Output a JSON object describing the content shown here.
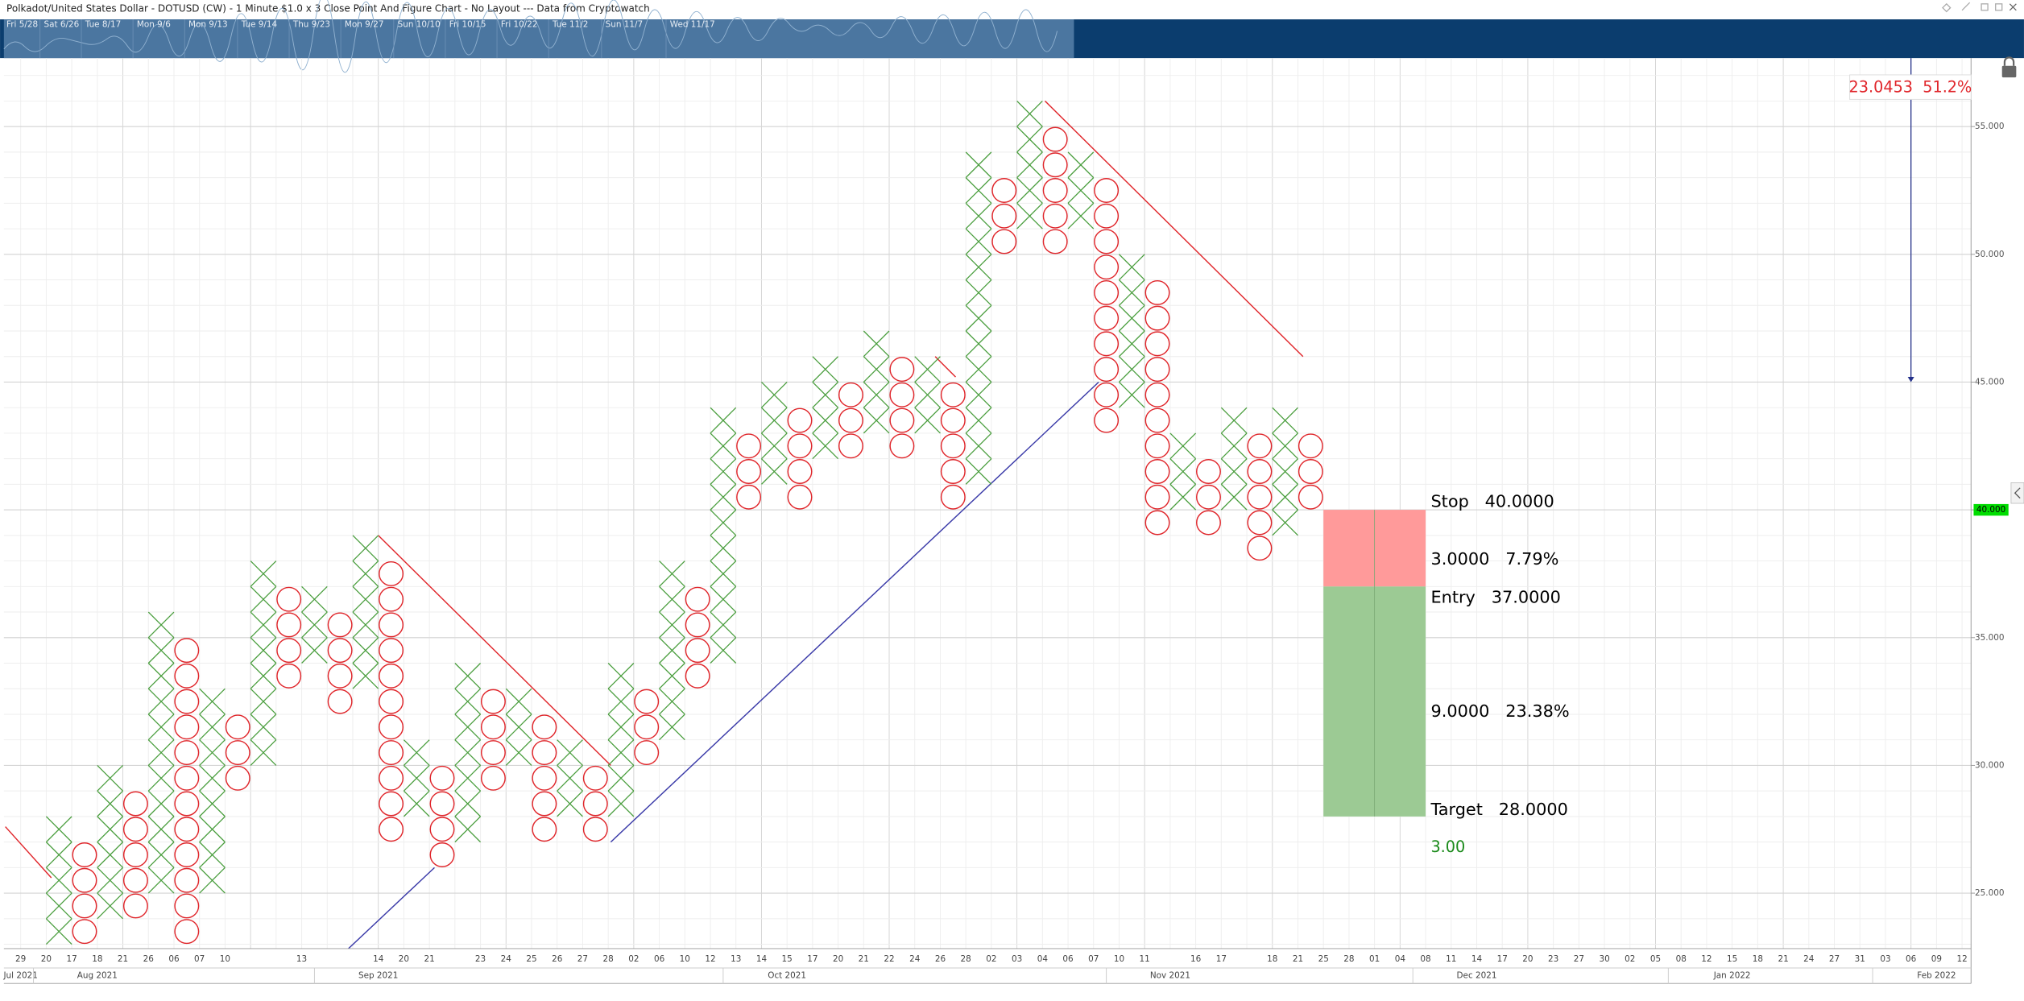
{
  "chart_data": {
    "type": "point_and_figure",
    "title": "Polkadot/United States Dollar - DOTUSD (CW) - 1 Minute $1.0 x 3 Close Point And Figure Chart - No Layout --- Data from Cryptowatch",
    "navigator_labels": [
      "Fri 5/28",
      "Sat 6/26",
      "Tue 8/17",
      "Mon 9/6",
      "Mon 9/13",
      "Tue 9/14",
      "Thu 9/23",
      "Mon 9/27",
      "Sun 10/10",
      "Fri 10/15",
      "Fri 10/22",
      "Tue 11/2",
      "Sun 11/7",
      "Wed 11/17"
    ],
    "x_labels": [
      "29",
      "20",
      "17",
      "18",
      "21",
      "26",
      "06",
      "07",
      "10",
      null,
      null,
      "13",
      null,
      null,
      "14",
      "20",
      "21",
      null,
      "23",
      "24",
      "25",
      "26",
      "27",
      "28",
      "02",
      "06",
      "10",
      "12",
      "13",
      "14",
      "15",
      "17",
      "20",
      "21",
      "22",
      "24",
      "26",
      "28",
      "02",
      "03",
      "04",
      "06",
      "07",
      "10",
      "11",
      null,
      "16",
      "17",
      null,
      "18",
      "21",
      "25",
      "28",
      "01",
      "04",
      "08",
      "11",
      "14",
      "17",
      "20",
      "23",
      "27",
      "30",
      "02",
      "05",
      "08",
      "12",
      "15",
      "18",
      "21",
      "24",
      "27",
      "31",
      "03",
      "06",
      "09",
      "12"
    ],
    "month_labels": [
      "Jul 2021",
      null,
      null,
      "Aug 2021",
      null,
      null,
      null,
      null,
      null,
      null,
      null,
      null,
      null,
      null,
      "Sep 2021",
      null,
      null,
      null,
      null,
      null,
      null,
      null,
      null,
      null,
      null,
      null,
      null,
      null,
      null,
      null,
      "Oct 2021",
      null,
      null,
      null,
      null,
      null,
      null,
      null,
      null,
      null,
      null,
      null,
      null,
      null,
      null,
      "Nov 2021",
      null,
      null,
      null,
      null,
      null,
      null,
      null,
      null,
      null,
      null,
      null,
      "Dec 2021",
      null,
      null,
      null,
      null,
      null,
      null,
      null,
      null,
      null,
      "Jan 2022",
      null,
      null,
      null,
      null,
      null,
      null,
      null,
      "Feb 2022",
      null
    ],
    "ylim": [
      22.83,
      57.68
    ],
    "yticks": [
      {
        "value": 25,
        "label": "25.000"
      },
      {
        "value": 30,
        "label": "30.000"
      },
      {
        "value": 35,
        "label": "35.000"
      },
      {
        "value": 40,
        "label": "40.000"
      },
      {
        "value": 45,
        "label": "45.000"
      },
      {
        "value": 50,
        "label": "50.000"
      },
      {
        "value": 55,
        "label": "55.000"
      }
    ],
    "grid": true,
    "box_size": 1,
    "x_color": "#4a9e3e",
    "o_color": "#e0262b",
    "columns": [
      {
        "type": "X",
        "low": 23,
        "high": 28
      },
      {
        "type": "O",
        "low": 23,
        "high": 27
      },
      {
        "type": "X",
        "low": 24,
        "high": 30
      },
      {
        "type": "O",
        "low": 24,
        "high": 29
      },
      {
        "type": "X",
        "low": 25,
        "high": 36
      },
      {
        "type": "O",
        "low": 23,
        "high": 35
      },
      {
        "type": "X",
        "low": 25,
        "high": 33
      },
      {
        "type": "O",
        "low": 29,
        "high": 32
      },
      {
        "type": "X",
        "low": 30,
        "high": 38
      },
      {
        "type": "O",
        "low": 33,
        "high": 37
      },
      {
        "type": "X",
        "low": 34,
        "high": 37
      },
      {
        "type": "O",
        "low": 32,
        "high": 36
      },
      {
        "type": "X",
        "low": 33,
        "high": 39
      },
      {
        "type": "O",
        "low": 27,
        "high": 38
      },
      {
        "type": "X",
        "low": 28,
        "high": 31
      },
      {
        "type": "O",
        "low": 26,
        "high": 30
      },
      {
        "type": "X",
        "low": 27,
        "high": 34
      },
      {
        "type": "O",
        "low": 29,
        "high": 33
      },
      {
        "type": "X",
        "low": 30,
        "high": 33
      },
      {
        "type": "O",
        "low": 27,
        "high": 32
      },
      {
        "type": "X",
        "low": 28,
        "high": 31
      },
      {
        "type": "O",
        "low": 27,
        "high": 30
      },
      {
        "type": "X",
        "low": 28,
        "high": 34
      },
      {
        "type": "O",
        "low": 30,
        "high": 33
      },
      {
        "type": "X",
        "low": 31,
        "high": 38
      },
      {
        "type": "O",
        "low": 33,
        "high": 37
      },
      {
        "type": "X",
        "low": 34,
        "high": 44
      },
      {
        "type": "O",
        "low": 40,
        "high": 43
      },
      {
        "type": "X",
        "low": 41,
        "high": 45
      },
      {
        "type": "O",
        "low": 40,
        "high": 44
      },
      {
        "type": "X",
        "low": 42,
        "high": 46
      },
      {
        "type": "O",
        "low": 42,
        "high": 45
      },
      {
        "type": "X",
        "low": 43,
        "high": 47
      },
      {
        "type": "O",
        "low": 42,
        "high": 46
      },
      {
        "type": "X",
        "low": 43,
        "high": 46
      },
      {
        "type": "O",
        "low": 40,
        "high": 45
      },
      {
        "type": "X",
        "low": 41,
        "high": 54
      },
      {
        "type": "O",
        "low": 50,
        "high": 53
      },
      {
        "type": "X",
        "low": 51,
        "high": 56
      },
      {
        "type": "O",
        "low": 50,
        "high": 55
      },
      {
        "type": "X",
        "low": 51,
        "high": 54
      },
      {
        "type": "O",
        "low": 43,
        "high": 53
      },
      {
        "type": "X",
        "low": 44,
        "high": 50
      },
      {
        "type": "O",
        "low": 39,
        "high": 49
      },
      {
        "type": "X",
        "low": 40,
        "high": 43
      },
      {
        "type": "O",
        "low": 39,
        "high": 42
      },
      {
        "type": "X",
        "low": 40,
        "high": 44
      },
      {
        "type": "O",
        "low": 38,
        "high": 43
      },
      {
        "type": "X",
        "low": 39,
        "high": 44
      },
      {
        "type": "O",
        "low": 40,
        "high": 43
      }
    ],
    "trendlines": [
      {
        "color": "#3a3aa8",
        "points": [
          [
            11.3,
            22.8
          ],
          [
            14.7,
            26.0
          ]
        ]
      },
      {
        "color": "#3a3aa8",
        "points": [
          [
            21.6,
            27
          ],
          [
            40.7,
            45
          ]
        ]
      },
      {
        "color": "#e0262b",
        "points": [
          [
            12.5,
            39
          ],
          [
            21.6,
            30
          ]
        ]
      },
      {
        "color": "#e0262b",
        "points": [
          [
            38.6,
            56
          ],
          [
            48.7,
            46
          ]
        ]
      },
      {
        "color": "#e0262b",
        "points": [
          [
            34.3,
            46
          ],
          [
            35.1,
            45.2
          ]
        ]
      },
      {
        "color": "#e0262b",
        "points": [
          [
            -2.1,
            27.6
          ],
          [
            -0.3,
            25.6
          ]
        ]
      }
    ],
    "risk_reward": {
      "stop": {
        "value": 40,
        "label": "Stop   40.0000"
      },
      "entry": {
        "value": 37,
        "label": "Entry   37.0000"
      },
      "target": {
        "value": 28,
        "label": "Target   28.0000"
      },
      "risk_label": "3.0000   7.79%",
      "reward_label": "9.0000   23.38%",
      "ratio_label": "3.00",
      "risk_color": "#ff9a9a",
      "reward_color": "#9cca94"
    },
    "projection": {
      "label": "23.0453  51.2%",
      "to": 45,
      "color": "#23308a"
    },
    "last_price": {
      "value": 40,
      "label": "40.000",
      "color": "#00dd00"
    }
  }
}
